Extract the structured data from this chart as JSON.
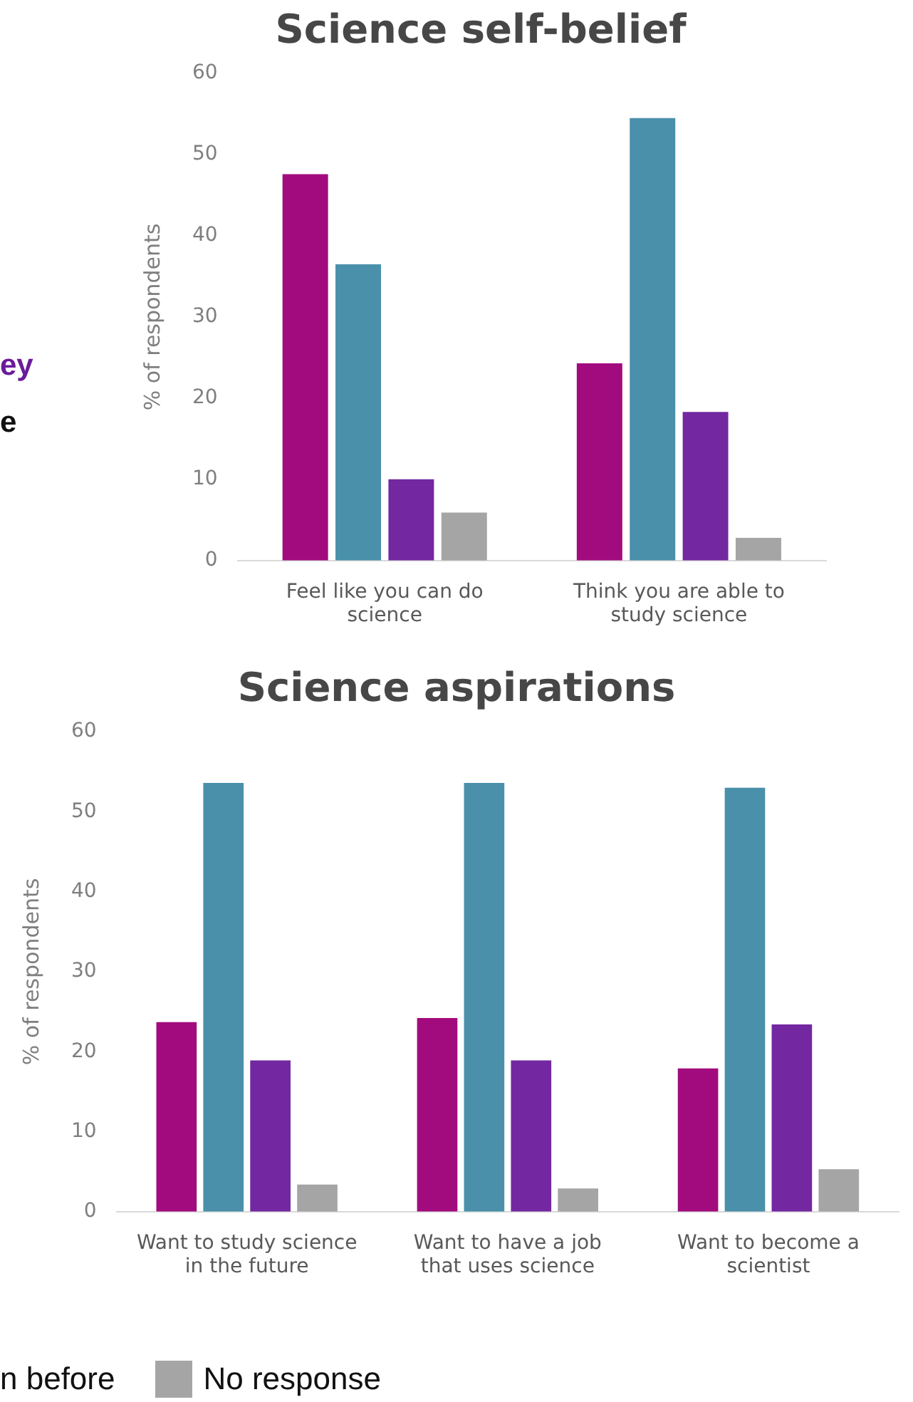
{
  "chart_data": [
    {
      "type": "bar",
      "title": "Science self-belief",
      "ylabel": "% of respondents",
      "categories": [
        "Feel like you can do science",
        "Think you are able to study science"
      ],
      "series": [
        {
          "color": "#a20b7e",
          "values": [
            47.6,
            24.3
          ]
        },
        {
          "color": "#4a90aa",
          "values": [
            36.5,
            54.5
          ]
        },
        {
          "color": "#7327a0",
          "values": [
            10.0,
            18.3
          ]
        },
        {
          "color": "#a5a5a5",
          "values": [
            5.9,
            2.8
          ]
        }
      ],
      "ylim": [
        0,
        60
      ],
      "yticks": [
        0,
        10,
        20,
        30,
        40,
        50,
        60
      ],
      "grid": false,
      "legend": false,
      "annotations": [
        "ey",
        "e"
      ]
    },
    {
      "type": "bar",
      "title": "Science aspirations",
      "ylabel": "% of respondents",
      "categories": [
        "Want to study science in the future",
        "Want to have a job that uses science",
        "Want to become a scientist"
      ],
      "series": [
        {
          "color": "#a20b7e",
          "values": [
            23.7,
            24.2,
            17.9
          ]
        },
        {
          "color": "#4a90aa",
          "values": [
            53.6,
            53.6,
            53.0
          ]
        },
        {
          "color": "#7327a0",
          "values": [
            18.9,
            18.9,
            23.4
          ]
        },
        {
          "name": "No response",
          "color": "#a5a5a5",
          "values": [
            3.4,
            2.9,
            5.3
          ]
        }
      ],
      "ylim": [
        0,
        60
      ],
      "yticks": [
        0,
        10,
        20,
        30,
        40,
        50,
        60
      ],
      "grid": false,
      "legend": "bottom left",
      "annotations": [
        "n before"
      ]
    }
  ]
}
